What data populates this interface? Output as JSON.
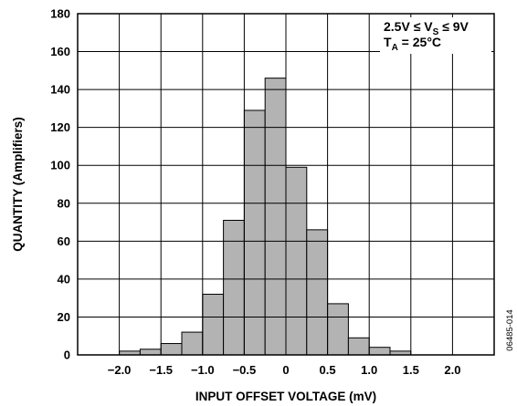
{
  "chart_data": {
    "type": "bar",
    "xlabel": "INPUT OFFSET VOLTAGE (mV)",
    "ylabel": "QUANTITY (Amplifiers)",
    "xlim": [
      -2.5,
      2.5
    ],
    "ylim": [
      0,
      180
    ],
    "x_ticks": [
      -2.0,
      -1.5,
      -1.0,
      -0.5,
      0,
      0.5,
      1.0,
      1.5,
      2.0
    ],
    "x_tick_labels": [
      "−2.0",
      "−1.5",
      "−1.0",
      "−0.5",
      "0",
      "0.5",
      "1.0",
      "1.5",
      "2.0"
    ],
    "y_ticks": [
      0,
      20,
      40,
      60,
      80,
      100,
      120,
      140,
      160,
      180
    ],
    "y_tick_labels": [
      "0",
      "20",
      "40",
      "60",
      "80",
      "100",
      "120",
      "140",
      "160",
      "180"
    ],
    "grid": true,
    "bin_width": 0.25,
    "bin_starts": [
      -2.0,
      -1.75,
      -1.5,
      -1.25,
      -1.0,
      -0.75,
      -0.5,
      -0.25,
      0.0,
      0.25,
      0.5,
      0.75,
      1.0,
      1.25
    ],
    "values": [
      2,
      3,
      6,
      12,
      32,
      71,
      129,
      146,
      99,
      66,
      27,
      9,
      4,
      2
    ],
    "bar_color": "#b3b3b3",
    "annotation": {
      "line1": {
        "prefix": "2.5V ≤ V",
        "sub": "S",
        "suffix": " ≤ 9V"
      },
      "line2": {
        "prefix": "T",
        "sub": "A",
        "suffix": " = 25°C"
      },
      "placement": "top-right"
    },
    "figure_id": "06485-014"
  }
}
